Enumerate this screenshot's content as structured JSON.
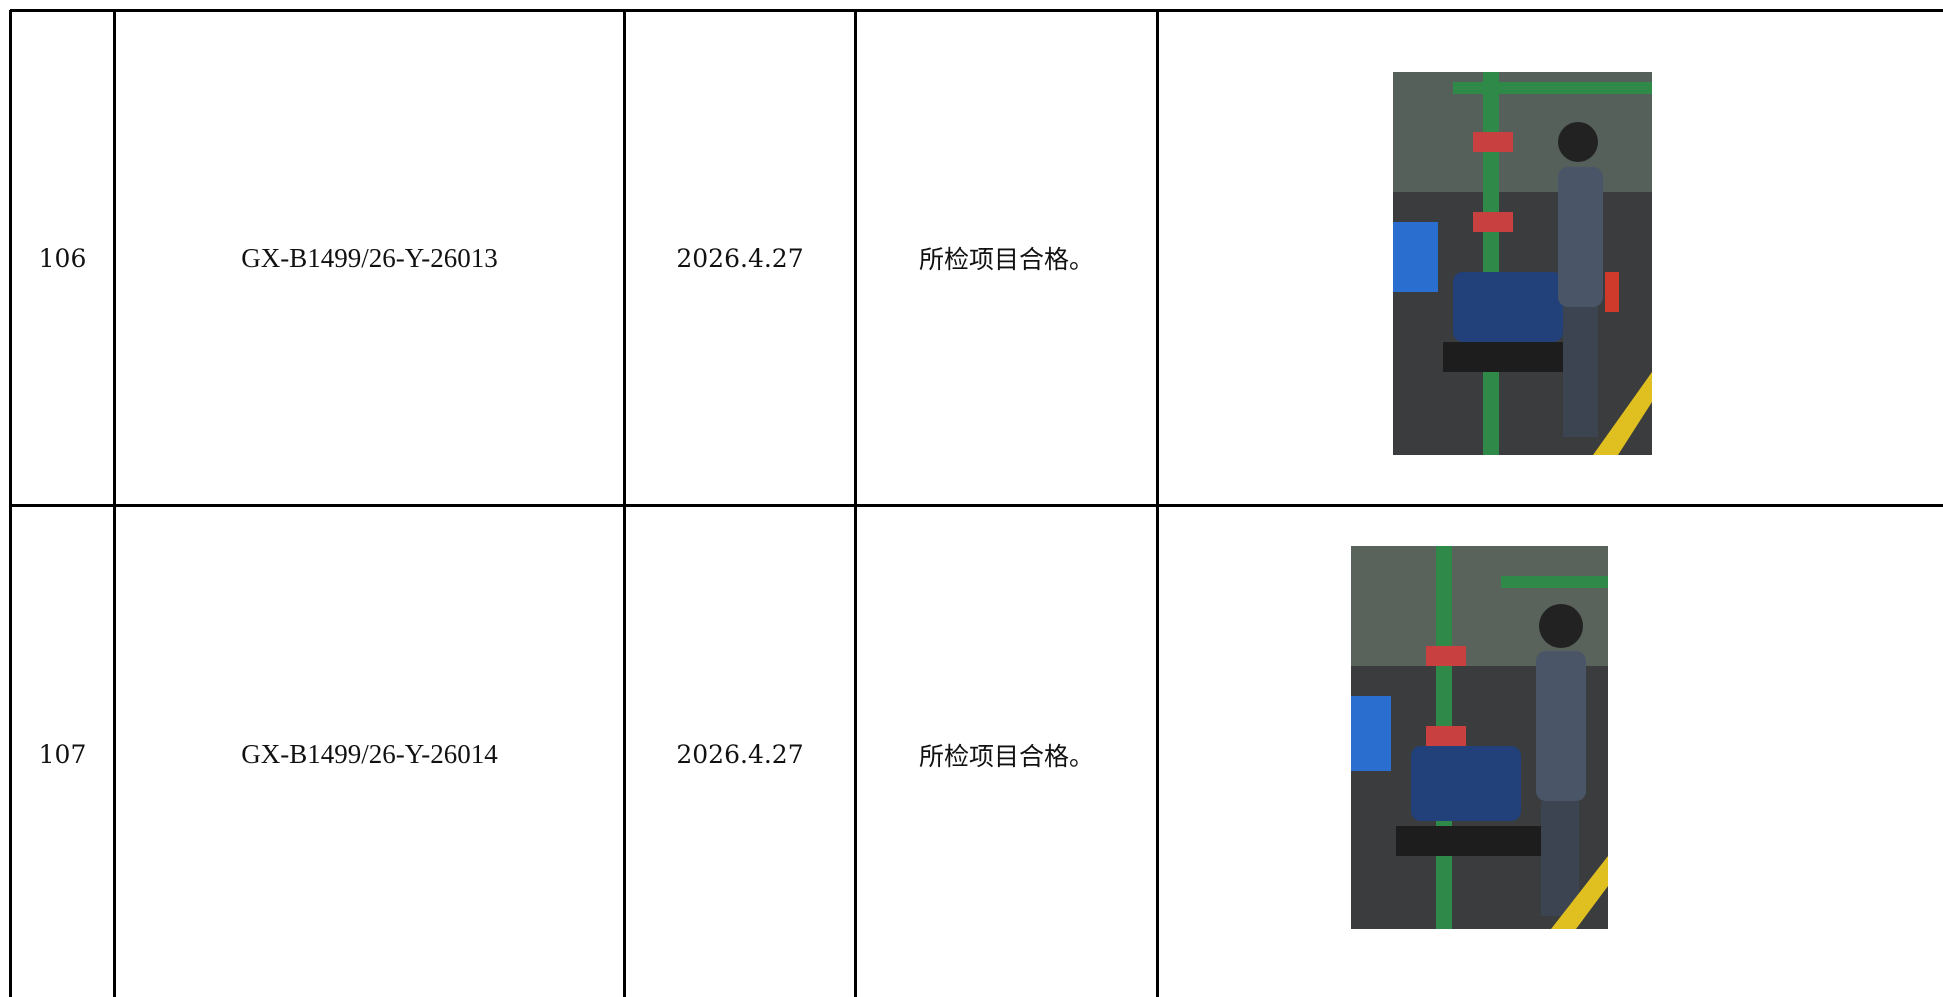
{
  "table": {
    "rows": [
      [
        "106",
        "GX-B1499/26-Y-26013",
        "2026.4.27",
        "所检项目合格。"
      ],
      [
        "107",
        "GX-B1499/26-Y-26014",
        "2026.4.27",
        "所检项目合格。"
      ]
    ]
  }
}
